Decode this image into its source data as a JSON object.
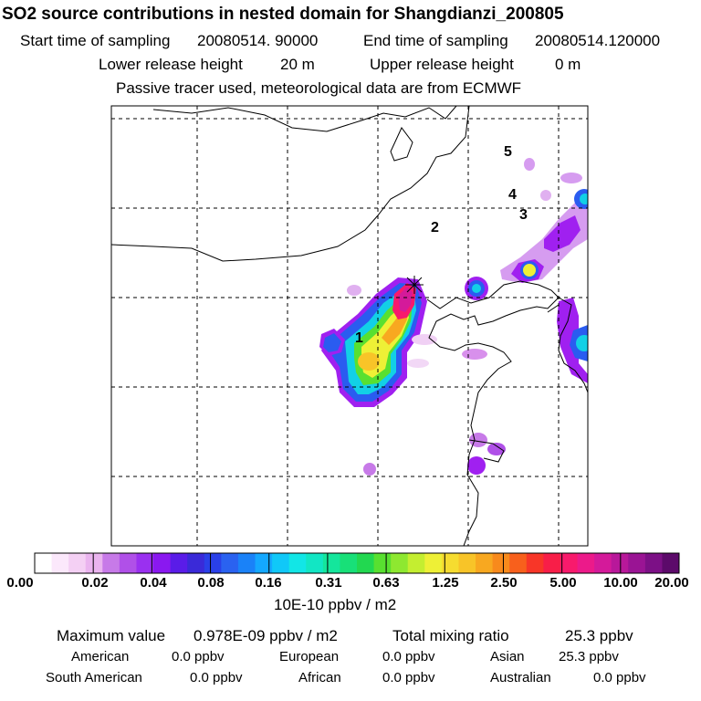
{
  "title": "SO2 source contributions in nested domain for Shangdianzi_200805",
  "header": {
    "start_label": "Start time of sampling",
    "start_value": "20080514. 90000",
    "end_label": "End time of sampling",
    "end_value": "20080514.120000",
    "lower_label": "Lower release height",
    "lower_value": "20 m",
    "upper_label": "Upper release height",
    "upper_value": "0 m",
    "note": "Passive tracer used, meteorological data are from ECMWF"
  },
  "map": {
    "region_labels": [
      "1",
      "2",
      "3",
      "4",
      "5"
    ],
    "station_marker": "Shangdianzi"
  },
  "colorbar": {
    "tick_labels": [
      "0.00",
      "0.02",
      "0.04",
      "0.08",
      "0.16",
      "0.31",
      "0.63",
      "1.25",
      "2.50",
      "5.00",
      "10.00",
      "20.00"
    ],
    "colors": [
      "#ffffff",
      "#fbe8fb",
      "#f4d0f4",
      "#eab4ef",
      "#c77ae8",
      "#b050e8",
      "#9a30f0",
      "#8a18f0",
      "#5a1ce8",
      "#3a2ad8",
      "#2a40e8",
      "#2a62f0",
      "#1a82f8",
      "#14a8ff",
      "#10c8f8",
      "#12e6e6",
      "#12e6c4",
      "#14e69c",
      "#18e078",
      "#22d850",
      "#58e030",
      "#8ee830",
      "#c4ee30",
      "#eef036",
      "#f6dc30",
      "#f8c428",
      "#f8a820",
      "#f88a1c",
      "#f8601c",
      "#f83628",
      "#f81e48",
      "#f81a6c",
      "#ec1a8a",
      "#d41a9a",
      "#b8189a",
      "#9a1494",
      "#7c1086",
      "#5c0a6a"
    ],
    "units": "10E-10 ppbv / m2"
  },
  "summary": {
    "max_label": "Maximum value",
    "max_value": "0.978E-09 ppbv / m2",
    "total_label": "Total mixing ratio",
    "total_value": "25.3 ppbv",
    "regions": [
      {
        "name": "American",
        "value": "0.0 ppbv"
      },
      {
        "name": "European",
        "value": "0.0 ppbv"
      },
      {
        "name": "Asian",
        "value": "25.3 ppbv"
      },
      {
        "name": "South American",
        "value": "0.0 ppbv"
      },
      {
        "name": "African",
        "value": "0.0 ppbv"
      },
      {
        "name": "Australian",
        "value": "0.0 ppbv"
      }
    ]
  }
}
